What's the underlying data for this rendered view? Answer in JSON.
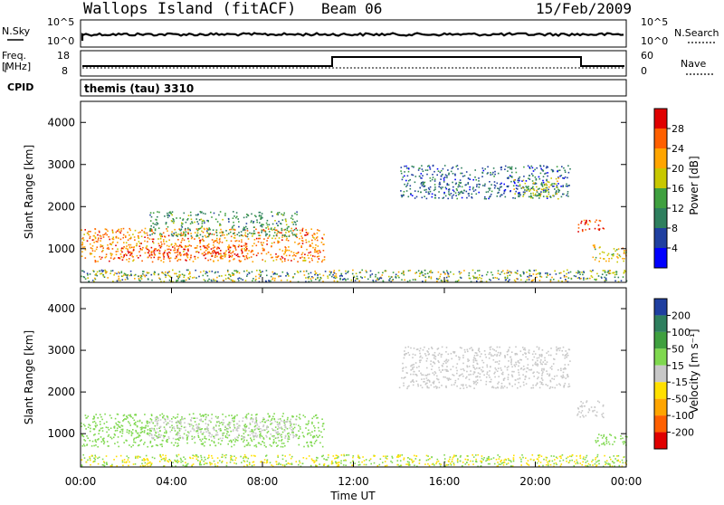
{
  "header": {
    "station": "Wallops Island (fitACF)",
    "beam": "Beam 06",
    "date": "15/Feb/2009"
  },
  "nsky": {
    "left_label": "N.Sky",
    "left_ticks": [
      "10^5",
      "10^0"
    ],
    "right_label": "N.Search",
    "right_ticks": [
      "10^5",
      "10^0"
    ]
  },
  "freq": {
    "left_label_1": "Freq.",
    "left_label_2": "[MHz]",
    "left_ticks": [
      "18",
      "8"
    ],
    "right_label": "Nave",
    "right_ticks": [
      "60",
      "0"
    ]
  },
  "cpid": {
    "label": "CPID",
    "text": "themis (tau) 3310"
  },
  "colors": {
    "power_scale": [
      "#0000ff",
      "#1f3fa0",
      "#2e7f5e",
      "#3fa03f",
      "#c8c800",
      "#ffa500",
      "#ff6000",
      "#e00000"
    ],
    "velocity_scale": [
      "#e00000",
      "#ff6000",
      "#ffa500",
      "#ffe000",
      "#c8c8c8",
      "#7fd84f",
      "#3fa03f",
      "#2e7f5e",
      "#1f3fa0"
    ]
  },
  "chart_data": [
    {
      "type": "heatmap",
      "panel": "power",
      "ylabel": "Slant Range [km]",
      "yticks": [
        "1000",
        "2000",
        "3000",
        "4000"
      ],
      "colorbar_label": "Power [dB]",
      "colorbar_ticks": [
        "4",
        "8",
        "12",
        "16",
        "20",
        "24",
        "28"
      ],
      "ylim": [
        200,
        4500
      ],
      "xlim": [
        0,
        24
      ],
      "regions": [
        {
          "t0": 0.0,
          "t1": 10.7,
          "r0": 700,
          "r1": 1500,
          "value": 24
        },
        {
          "t0": 1.5,
          "t1": 7.5,
          "r0": 800,
          "r1": 1100,
          "value": 28
        },
        {
          "t0": 3.0,
          "t1": 9.5,
          "r0": 1300,
          "r1": 1900,
          "value": 12
        },
        {
          "t0": 14.0,
          "t1": 21.5,
          "r0": 2200,
          "r1": 3000,
          "value": 8
        },
        {
          "t0": 19.0,
          "t1": 21.0,
          "r0": 2200,
          "r1": 2700,
          "value": 16
        },
        {
          "t0": 21.8,
          "t1": 23.0,
          "r0": 1400,
          "r1": 1700,
          "value": 28
        },
        {
          "t0": 22.5,
          "t1": 24.0,
          "r0": 700,
          "r1": 1100,
          "value": 20
        }
      ]
    },
    {
      "type": "heatmap",
      "panel": "velocity",
      "ylabel": "Slant Range [km]",
      "yticks": [
        "1000",
        "2000",
        "3000",
        "4000"
      ],
      "xlabel": "Time UT",
      "xticks": [
        "00:00",
        "04:00",
        "08:00",
        "12:00",
        "16:00",
        "20:00",
        "00:00"
      ],
      "colorbar_label": "Velocity [m s⁻¹]",
      "colorbar_ticks": [
        "200",
        "100",
        "50",
        "15",
        "-15",
        "-50",
        "-100",
        "-200"
      ],
      "ylim": [
        200,
        4500
      ],
      "xlim": [
        0,
        24
      ],
      "regions": [
        {
          "t0": 0.0,
          "t1": 10.7,
          "r0": 700,
          "r1": 1500,
          "value": 30
        },
        {
          "t0": 3.0,
          "t1": 9.5,
          "r0": 900,
          "r1": 1400,
          "value": 0
        },
        {
          "t0": 14.0,
          "t1": 21.5,
          "r0": 2100,
          "r1": 3100,
          "value": 0
        },
        {
          "t0": 21.8,
          "t1": 23.0,
          "r0": 1400,
          "r1": 1800,
          "value": 0
        },
        {
          "t0": 22.5,
          "t1": 24.0,
          "r0": 700,
          "r1": 1000,
          "value": 30
        }
      ]
    }
  ]
}
